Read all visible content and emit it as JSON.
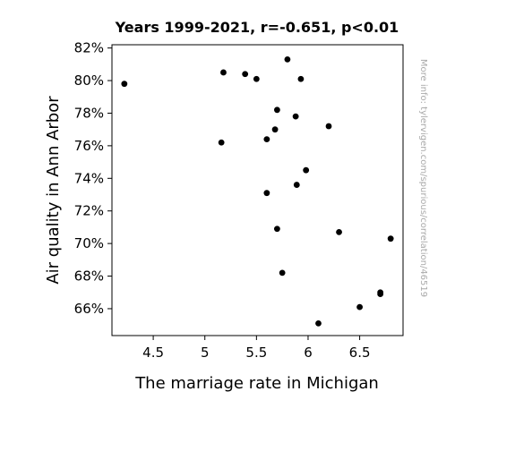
{
  "chart_data": {
    "type": "scatter",
    "title": "Years 1999-2021, r=-0.651, p<0.01",
    "xlabel": "The marriage rate in Michigan",
    "ylabel": "Air quality in Ann Arbor",
    "watermark": "More info: tylervigen.com/spurious/correlation/46519",
    "xlim": [
      4.1,
      6.92
    ],
    "ylim": [
      64.35,
      82.2
    ],
    "x_ticks": [
      4.5,
      5,
      5.5,
      6,
      6.5
    ],
    "x_tick_labels": [
      "4.5",
      "5",
      "5.5",
      "6",
      "6.5"
    ],
    "y_ticks": [
      66,
      68,
      70,
      72,
      74,
      76,
      78,
      80,
      82
    ],
    "y_tick_labels": [
      "66%",
      "68%",
      "70%",
      "72%",
      "74%",
      "76%",
      "78%",
      "80%",
      "82%"
    ],
    "grid": false,
    "marker_color": "#000000",
    "points": [
      {
        "x": 4.22,
        "y": 79.8
      },
      {
        "x": 5.18,
        "y": 80.5
      },
      {
        "x": 5.16,
        "y": 76.2
      },
      {
        "x": 5.39,
        "y": 80.4
      },
      {
        "x": 5.5,
        "y": 80.1
      },
      {
        "x": 5.6,
        "y": 76.4
      },
      {
        "x": 5.6,
        "y": 73.1
      },
      {
        "x": 5.68,
        "y": 77.0
      },
      {
        "x": 5.7,
        "y": 78.2
      },
      {
        "x": 5.7,
        "y": 70.9
      },
      {
        "x": 5.75,
        "y": 68.2
      },
      {
        "x": 5.8,
        "y": 81.3
      },
      {
        "x": 5.88,
        "y": 77.8
      },
      {
        "x": 5.89,
        "y": 73.6
      },
      {
        "x": 5.93,
        "y": 80.1
      },
      {
        "x": 5.98,
        "y": 74.5
      },
      {
        "x": 6.1,
        "y": 65.1
      },
      {
        "x": 6.2,
        "y": 77.2
      },
      {
        "x": 6.3,
        "y": 70.7
      },
      {
        "x": 6.5,
        "y": 66.1
      },
      {
        "x": 6.7,
        "y": 67.0
      },
      {
        "x": 6.7,
        "y": 66.9
      },
      {
        "x": 6.8,
        "y": 70.3
      }
    ]
  }
}
